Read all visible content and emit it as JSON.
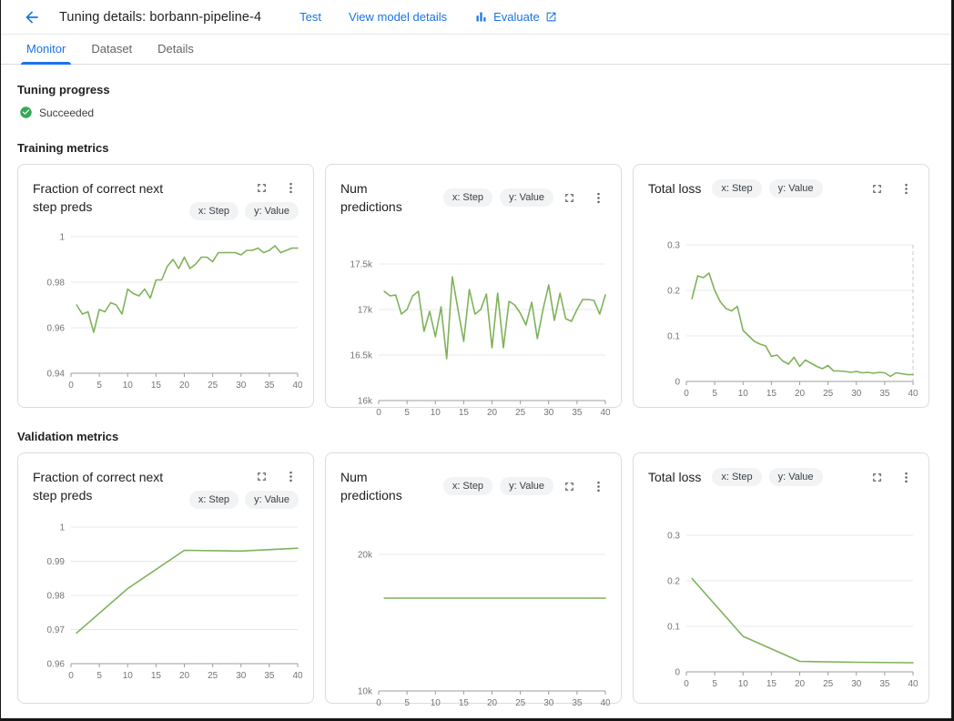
{
  "colors": {
    "accent": "#1a73e8",
    "success_green": "#34a853",
    "line_green": "#7eb25a",
    "grid": "#e8e8e8",
    "axis": "#9e9e9e",
    "tick_text": "#757575"
  },
  "header": {
    "title": "Tuning details: borbann-pipeline-4",
    "actions": {
      "test": "Test",
      "view_model_details": "View model details",
      "evaluate": "Evaluate"
    }
  },
  "tabs": [
    {
      "label": "Monitor",
      "active": true
    },
    {
      "label": "Dataset",
      "active": false
    },
    {
      "label": "Details",
      "active": false
    }
  ],
  "progress": {
    "heading": "Tuning progress",
    "status": "Succeeded"
  },
  "sections": {
    "training": "Training metrics",
    "validation": "Validation metrics"
  },
  "chart_data": [
    {
      "type": "line",
      "section": "training",
      "title": "Fraction of correct next step preds",
      "chips": [
        "x: Step",
        "y: Value"
      ],
      "xlabel": "Step",
      "ylabel": "Value",
      "xlim": [
        0,
        40
      ],
      "ylim": [
        0.94,
        1
      ],
      "xticks": [
        0,
        5,
        10,
        15,
        20,
        25,
        30,
        35,
        40
      ],
      "yticks": [
        0.94,
        0.96,
        0.98,
        1
      ],
      "ytick_labels": [
        "0.94",
        "0.96",
        "0.98",
        "1"
      ],
      "grid": true,
      "dashed_right": false,
      "x": [
        1,
        2,
        3,
        4,
        5,
        6,
        7,
        8,
        9,
        10,
        11,
        12,
        13,
        14,
        15,
        16,
        17,
        18,
        19,
        20,
        21,
        22,
        23,
        24,
        25,
        26,
        27,
        28,
        29,
        30,
        31,
        32,
        33,
        34,
        35,
        36,
        37,
        38,
        39,
        40
      ],
      "y": [
        0.97,
        0.966,
        0.967,
        0.958,
        0.968,
        0.967,
        0.971,
        0.97,
        0.966,
        0.977,
        0.975,
        0.974,
        0.977,
        0.973,
        0.981,
        0.981,
        0.987,
        0.99,
        0.986,
        0.991,
        0.986,
        0.988,
        0.991,
        0.991,
        0.989,
        0.993,
        0.993,
        0.993,
        0.993,
        0.992,
        0.994,
        0.994,
        0.995,
        0.993,
        0.994,
        0.996,
        0.993,
        0.994,
        0.995,
        0.995
      ]
    },
    {
      "type": "line",
      "section": "training",
      "title": "Num predictions",
      "chips": [
        "x: Step",
        "y: Value"
      ],
      "xlabel": "Step",
      "ylabel": "Value",
      "xlim": [
        0,
        40
      ],
      "ylim": [
        16000,
        17500
      ],
      "xticks": [
        0,
        5,
        10,
        15,
        20,
        25,
        30,
        35,
        40
      ],
      "yticks": [
        16000,
        16500,
        17000,
        17500
      ],
      "ytick_labels": [
        "16k",
        "16.5k",
        "17k",
        "17.5k"
      ],
      "grid": true,
      "dashed_right": false,
      "x": [
        1,
        2,
        3,
        4,
        5,
        6,
        7,
        8,
        9,
        10,
        11,
        12,
        13,
        14,
        15,
        16,
        17,
        18,
        19,
        20,
        21,
        22,
        23,
        24,
        25,
        26,
        27,
        28,
        29,
        30,
        31,
        32,
        33,
        34,
        35,
        36,
        37,
        38,
        39,
        40
      ],
      "y": [
        17200,
        17150,
        17160,
        16950,
        17000,
        17150,
        17200,
        16760,
        16980,
        16700,
        17030,
        16460,
        17360,
        17000,
        16650,
        17220,
        16950,
        17000,
        17170,
        16580,
        17180,
        16580,
        17090,
        17050,
        16960,
        16830,
        17080,
        16680,
        17000,
        17270,
        16880,
        17180,
        16900,
        16870,
        17000,
        17110,
        17110,
        17100,
        16950,
        17160
      ]
    },
    {
      "type": "line",
      "section": "training",
      "title": "Total loss",
      "chips": [
        "x: Step",
        "y: Value"
      ],
      "xlabel": "Step",
      "ylabel": "Value",
      "xlim": [
        0,
        40
      ],
      "ylim": [
        0,
        0.3
      ],
      "xticks": [
        0,
        5,
        10,
        15,
        20,
        25,
        30,
        35,
        40
      ],
      "yticks": [
        0,
        0.1,
        0.2,
        0.3
      ],
      "ytick_labels": [
        "0",
        "0.1",
        "0.2",
        "0.3"
      ],
      "grid": true,
      "dashed_right": true,
      "x": [
        1,
        2,
        3,
        4,
        5,
        6,
        7,
        8,
        9,
        10,
        11,
        12,
        13,
        14,
        15,
        16,
        17,
        18,
        19,
        20,
        21,
        22,
        23,
        24,
        25,
        26,
        27,
        28,
        29,
        30,
        31,
        32,
        33,
        34,
        35,
        36,
        37,
        38,
        39,
        40
      ],
      "y": [
        0.182,
        0.232,
        0.228,
        0.238,
        0.2,
        0.175,
        0.16,
        0.155,
        0.165,
        0.112,
        0.1,
        0.088,
        0.082,
        0.078,
        0.055,
        0.058,
        0.045,
        0.038,
        0.053,
        0.033,
        0.047,
        0.04,
        0.033,
        0.028,
        0.035,
        0.023,
        0.023,
        0.022,
        0.02,
        0.022,
        0.019,
        0.02,
        0.018,
        0.02,
        0.019,
        0.011,
        0.019,
        0.017,
        0.015,
        0.015
      ]
    },
    {
      "type": "line",
      "section": "validation",
      "title": "Fraction of correct next step preds",
      "chips": [
        "x: Step",
        "y: Value"
      ],
      "xlabel": "Step",
      "ylabel": "Value",
      "xlim": [
        0,
        40
      ],
      "ylim": [
        0.96,
        1
      ],
      "xticks": [
        0,
        5,
        10,
        15,
        20,
        25,
        30,
        35,
        40
      ],
      "yticks": [
        0.96,
        0.97,
        0.98,
        0.99,
        1
      ],
      "ytick_labels": [
        "0.96",
        "0.97",
        "0.98",
        "0.99",
        "1"
      ],
      "grid": true,
      "dashed_right": false,
      "x": [
        1,
        10,
        20,
        30,
        40
      ],
      "y": [
        0.969,
        0.982,
        0.9932,
        0.993,
        0.9938
      ]
    },
    {
      "type": "line",
      "section": "validation",
      "title": "Num predictions",
      "chips": [
        "x: Step",
        "y: Value"
      ],
      "xlabel": "Step",
      "ylabel": "Value",
      "xlim": [
        0,
        40
      ],
      "ylim": [
        10000,
        20000
      ],
      "xticks": [
        0,
        5,
        10,
        15,
        20,
        25,
        30,
        35,
        40
      ],
      "yticks": [
        10000,
        20000
      ],
      "ytick_labels": [
        "10k",
        "20k"
      ],
      "grid": true,
      "dashed_right": false,
      "x": [
        1,
        10,
        20,
        30,
        40
      ],
      "y": [
        16800,
        16800,
        16800,
        16800,
        16800
      ]
    },
    {
      "type": "line",
      "section": "validation",
      "title": "Total loss",
      "chips": [
        "x: Step",
        "y: Value"
      ],
      "xlabel": "Step",
      "ylabel": "Value",
      "xlim": [
        0,
        40
      ],
      "ylim": [
        0,
        0.3
      ],
      "xticks": [
        0,
        5,
        10,
        15,
        20,
        25,
        30,
        35,
        40
      ],
      "yticks": [
        0,
        0.1,
        0.2,
        0.3
      ],
      "ytick_labels": [
        "0",
        "0.1",
        "0.2",
        "0.3"
      ],
      "grid": true,
      "dashed_right": false,
      "x": [
        1,
        10,
        20,
        30,
        40
      ],
      "y": [
        0.205,
        0.078,
        0.023,
        0.021,
        0.02
      ]
    }
  ]
}
